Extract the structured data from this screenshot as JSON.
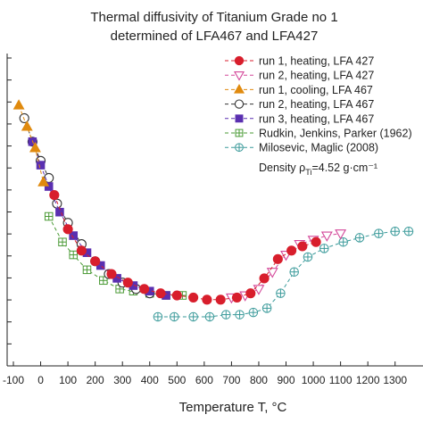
{
  "chart_data": {
    "type": "scatter",
    "title_lines": [
      "Thermal diffusivity of Titanium Grade no 1",
      "determined of LFA467 and LFA427"
    ],
    "xlabel": "Temperature T, °C",
    "x_tick_labels": [
      "-100",
      "0",
      "100",
      "200",
      "300",
      "400",
      "500",
      "600",
      "700",
      "800",
      "900",
      "1000",
      "1100",
      "1200",
      "1300"
    ],
    "x_ticks": [
      -100,
      0,
      100,
      200,
      300,
      400,
      500,
      600,
      700,
      800,
      900,
      1000,
      1100,
      1200,
      1300
    ],
    "xlim": [
      -100,
      1350
    ],
    "y_axis_ticks": 15,
    "series": [
      {
        "name": "run 1, heating, LFA 427",
        "color": "#d81e2c",
        "marker": "circle",
        "fill": "filled",
        "dash": "4,3",
        "points": [
          [
            50,
            5.5
          ],
          [
            100,
            4.7
          ],
          [
            150,
            4.2
          ],
          [
            200,
            3.95
          ],
          [
            260,
            3.65
          ],
          [
            320,
            3.45
          ],
          [
            380,
            3.3
          ],
          [
            440,
            3.2
          ],
          [
            500,
            3.15
          ],
          [
            560,
            3.1
          ],
          [
            610,
            3.05
          ],
          [
            660,
            3.05
          ],
          [
            720,
            3.1
          ],
          [
            770,
            3.2
          ],
          [
            820,
            3.55
          ],
          [
            870,
            4.0
          ],
          [
            920,
            4.2
          ],
          [
            960,
            4.3
          ],
          [
            1010,
            4.4
          ]
        ]
      },
      {
        "name": "run 2, heating, LFA 427",
        "color": "#d4489a",
        "marker": "triangle-down",
        "fill": "open",
        "dash": "4,3",
        "points": [
          [
            700,
            3.1
          ],
          [
            750,
            3.15
          ],
          [
            800,
            3.3
          ],
          [
            850,
            3.7
          ],
          [
            900,
            4.1
          ],
          [
            950,
            4.35
          ],
          [
            1000,
            4.45
          ],
          [
            1050,
            4.55
          ],
          [
            1100,
            4.6
          ]
        ]
      },
      {
        "name": "run 1, cooling, LFA 467",
        "color": "#e08a0e",
        "marker": "triangle-up",
        "fill": "filled",
        "dash": "4,3",
        "points": [
          [
            -80,
            7.6
          ],
          [
            -50,
            7.1
          ],
          [
            -20,
            6.6
          ],
          [
            10,
            5.8
          ]
        ]
      },
      {
        "name": "run 2, heating, LFA 467",
        "color": "#333333",
        "marker": "circle",
        "fill": "open",
        "dash": "4,3",
        "points": [
          [
            -60,
            7.3
          ],
          [
            -30,
            6.75
          ],
          [
            0,
            6.3
          ],
          [
            30,
            5.9
          ],
          [
            60,
            5.3
          ],
          [
            100,
            4.85
          ],
          [
            150,
            4.35
          ],
          [
            200,
            3.95
          ],
          [
            250,
            3.65
          ],
          [
            300,
            3.45
          ],
          [
            350,
            3.3
          ],
          [
            400,
            3.2
          ]
        ]
      },
      {
        "name": "run 3, heating, LFA 467",
        "color": "#5a2fb0",
        "marker": "square",
        "fill": "filled",
        "dash": "4,3",
        "points": [
          [
            -30,
            6.75
          ],
          [
            0,
            6.2
          ],
          [
            30,
            5.7
          ],
          [
            70,
            5.1
          ],
          [
            120,
            4.55
          ],
          [
            170,
            4.15
          ],
          [
            220,
            3.85
          ],
          [
            280,
            3.55
          ],
          [
            340,
            3.38
          ],
          [
            400,
            3.25
          ],
          [
            460,
            3.15
          ]
        ]
      },
      {
        "name": "Rudkin, Jenkins, Parker (1962)",
        "color": "#4a9a35",
        "marker": "square-plus",
        "fill": "open",
        "dash": "4,3",
        "points": [
          [
            30,
            5.0
          ],
          [
            80,
            4.4
          ],
          [
            120,
            4.1
          ],
          [
            170,
            3.75
          ],
          [
            230,
            3.5
          ],
          [
            290,
            3.3
          ],
          [
            340,
            3.25
          ],
          [
            400,
            3.2
          ],
          [
            460,
            3.15
          ],
          [
            520,
            3.15
          ]
        ]
      },
      {
        "name": "Milosevic, Maglic (2008)",
        "color": "#3a9a9a",
        "marker": "circle-plus",
        "fill": "open",
        "dash": "4,3",
        "points": [
          [
            430,
            2.65
          ],
          [
            490,
            2.65
          ],
          [
            560,
            2.65
          ],
          [
            620,
            2.65
          ],
          [
            680,
            2.7
          ],
          [
            730,
            2.7
          ],
          [
            780,
            2.75
          ],
          [
            830,
            2.85
          ],
          [
            880,
            3.2
          ],
          [
            930,
            3.7
          ],
          [
            980,
            4.05
          ],
          [
            1040,
            4.25
          ],
          [
            1110,
            4.4
          ],
          [
            1170,
            4.5
          ],
          [
            1240,
            4.6
          ],
          [
            1300,
            4.65
          ],
          [
            1350,
            4.65
          ]
        ]
      }
    ],
    "annotation": "Density ρ",
    "annotation_sub": "Ti",
    "annotation_tail": "=4.52 g·cm⁻¹",
    "legend_position": "top-right",
    "grid": false
  }
}
